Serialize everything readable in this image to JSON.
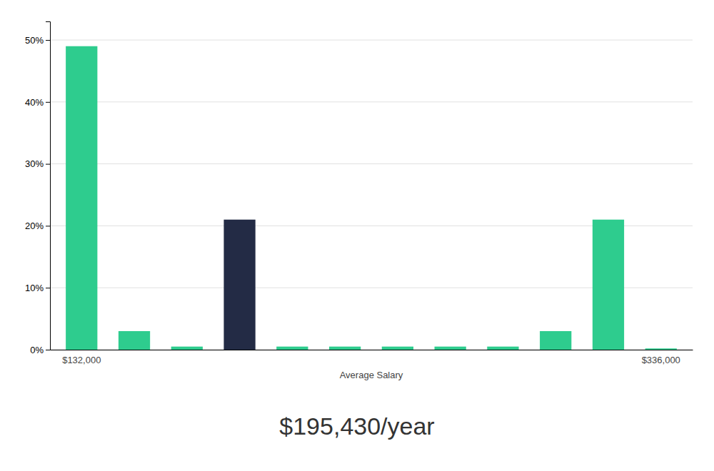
{
  "chart_data": {
    "type": "bar",
    "title": "$195,430/year",
    "x_label": "Average Salary",
    "categories": [
      "$132,000",
      null,
      null,
      null,
      null,
      null,
      null,
      null,
      null,
      null,
      null,
      "$336,000"
    ],
    "values": [
      49,
      3,
      0.5,
      21,
      0.5,
      0.5,
      0.5,
      0.5,
      0.5,
      3,
      21,
      0.2
    ],
    "colors": [
      "#2ecc8e",
      "#2ecc8e",
      "#2ecc8e",
      "#232b45",
      "#2ecc8e",
      "#2ecc8e",
      "#2ecc8e",
      "#2ecc8e",
      "#2ecc8e",
      "#2ecc8e",
      "#2ecc8e",
      "#2ecc8e"
    ],
    "ylim": [
      0,
      53
    ],
    "yticks": [
      {
        "value": 0,
        "label": "0%"
      },
      {
        "value": 10,
        "label": "10%"
      },
      {
        "value": 20,
        "label": "20%"
      },
      {
        "value": 30,
        "label": "30%"
      },
      {
        "value": 40,
        "label": "40%"
      },
      {
        "value": 50,
        "label": "50%"
      }
    ],
    "grid": true
  }
}
